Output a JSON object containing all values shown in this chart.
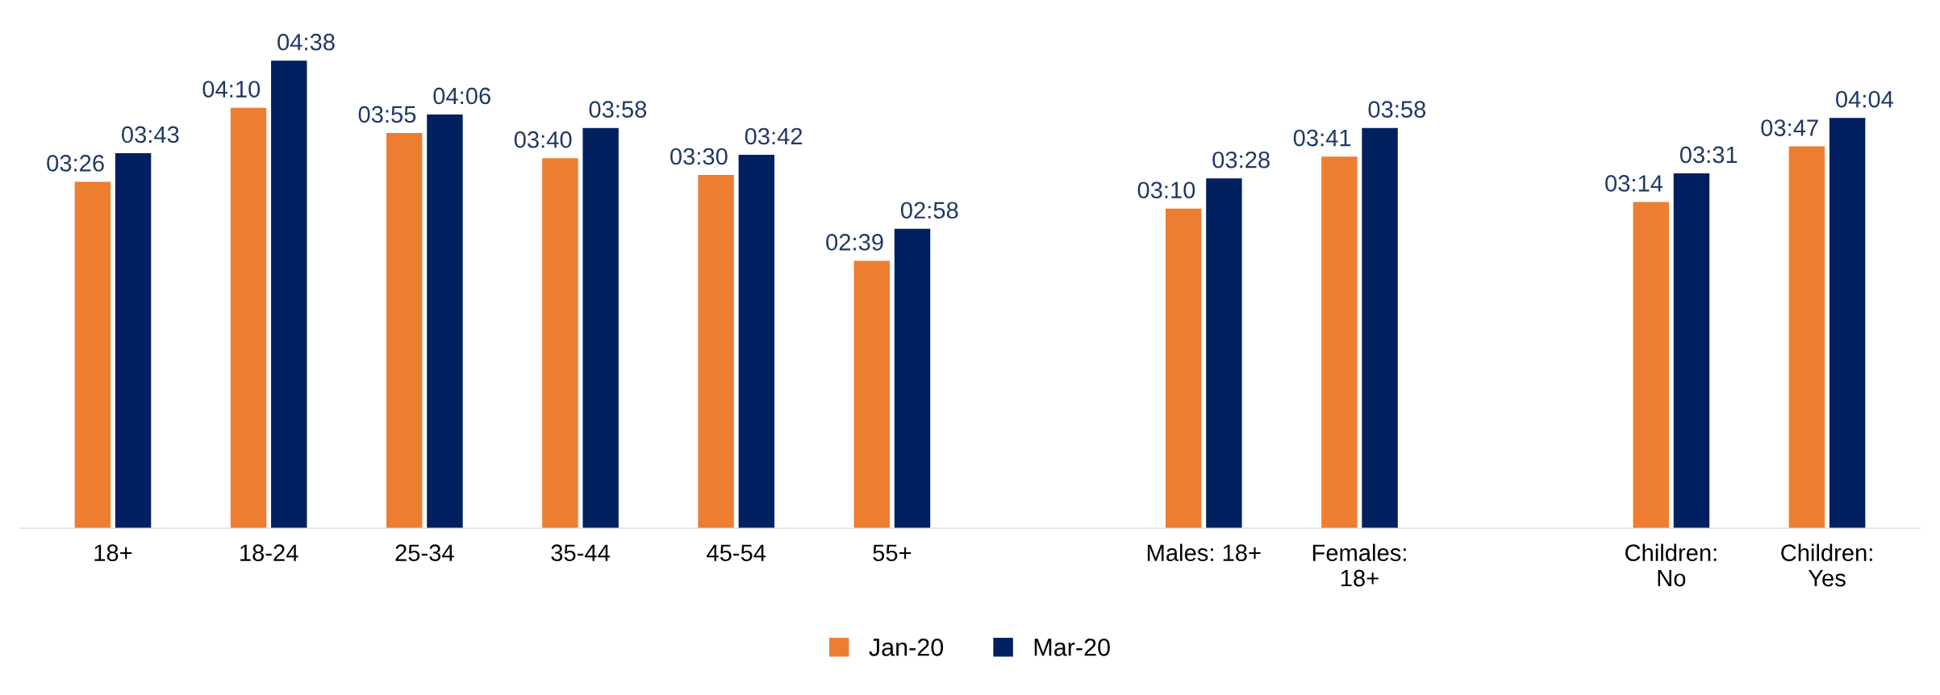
{
  "chart_data": {
    "type": "bar",
    "categories": [
      "18+",
      "18-24",
      "25-34",
      "35-44",
      "45-54",
      "55+",
      null,
      "Males: 18+",
      "Females:\n18+",
      null,
      "Children:\nNo",
      "Children:\nYes"
    ],
    "series": [
      {
        "name": "Jan-20",
        "color": "#ed7d31",
        "values": [
          206,
          250,
          235,
          220,
          210,
          159,
          null,
          190,
          221,
          null,
          194,
          227
        ],
        "value_labels": [
          "03:26",
          "04:10",
          "03:55",
          "03:40",
          "03:30",
          "02:39",
          null,
          "03:10",
          "03:41",
          null,
          "03:14",
          "03:47"
        ]
      },
      {
        "name": "Mar-20",
        "color": "#002060",
        "values": [
          223,
          278,
          246,
          238,
          222,
          178,
          null,
          208,
          238,
          null,
          211,
          244
        ],
        "value_labels": [
          "03:43",
          "04:38",
          "04:06",
          "03:58",
          "03:42",
          "02:58",
          null,
          "03:28",
          "03:58",
          null,
          "03:31",
          "04:04"
        ]
      }
    ],
    "tick_labels": "x",
    "grid": false,
    "legend": "bottom"
  }
}
